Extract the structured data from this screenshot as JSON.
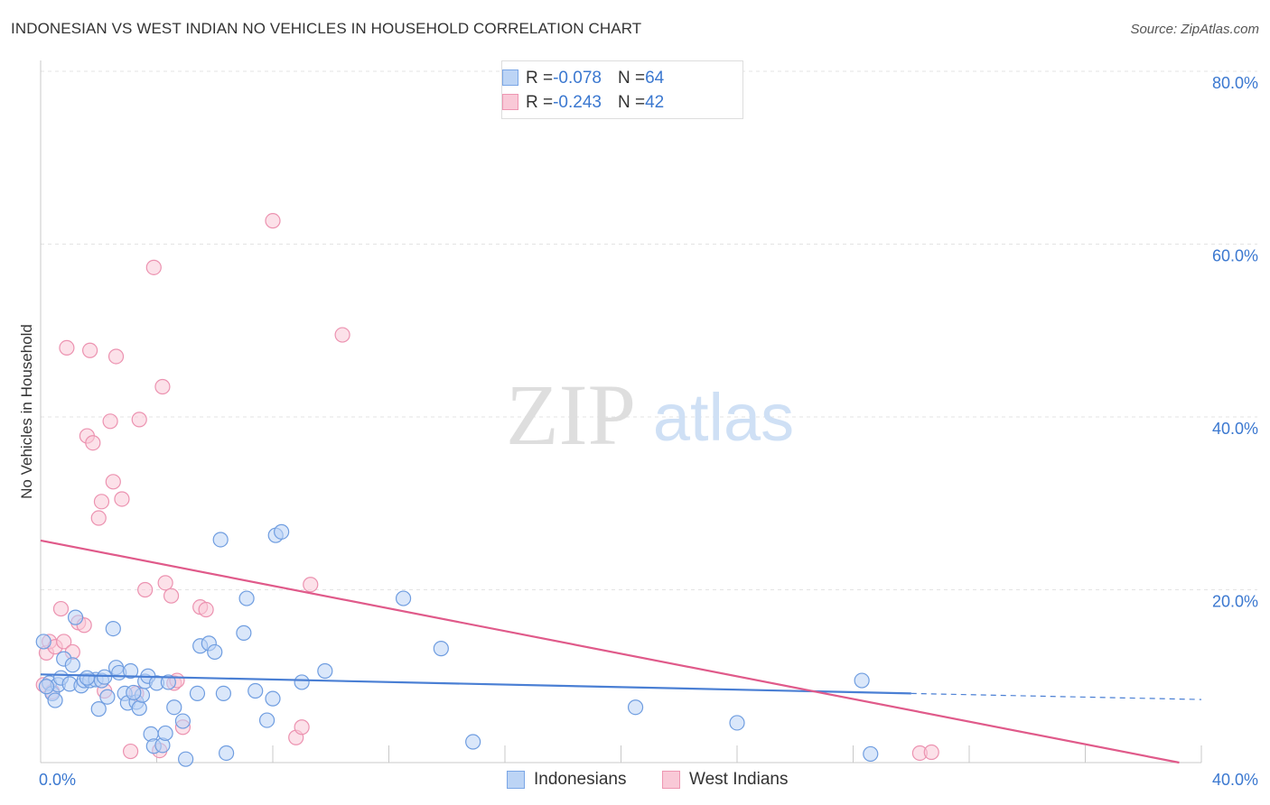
{
  "header": {
    "title": "INDONESIAN VS WEST INDIAN NO VEHICLES IN HOUSEHOLD CORRELATION CHART",
    "source": "Source: ZipAtlas.com"
  },
  "watermark": {
    "zip": "ZIP",
    "atlas": "atlas"
  },
  "legend": {
    "r_label": "R = ",
    "n_label": "N = ",
    "rows": [
      {
        "r": "-0.078",
        "n": "64",
        "fill": "#bcd4f5",
        "stroke": "#7aa6e6"
      },
      {
        "r": "-0.243",
        "n": "42",
        "fill": "#f9c9d7",
        "stroke": "#ee96b2"
      }
    ]
  },
  "bottom_legend": [
    {
      "label": "Indonesians",
      "fill": "#bcd4f5",
      "stroke": "#7aa6e6"
    },
    {
      "label": "West Indians",
      "fill": "#f9c9d7",
      "stroke": "#ee96b2"
    }
  ],
  "chart_data": {
    "type": "scatter",
    "title": "INDONESIAN VS WEST INDIAN NO VEHICLES IN HOUSEHOLD CORRELATION CHART",
    "xlabel": "",
    "ylabel": "No Vehicles in Household",
    "xlim": [
      0,
      40
    ],
    "ylim": [
      0,
      80
    ],
    "x_tick_labels": [
      {
        "value": 0,
        "label": "0.0%"
      },
      {
        "value": 40,
        "label": "40.0%"
      }
    ],
    "y_tick_labels": [
      {
        "value": 20,
        "label": "20.0%"
      },
      {
        "value": 40,
        "label": "40.0%"
      },
      {
        "value": 60,
        "label": "60.0%"
      },
      {
        "value": 80,
        "label": "80.0%"
      }
    ],
    "grid": true,
    "legend_position": "top-center",
    "series": [
      {
        "name": "Indonesians",
        "color": "#4a7fd4",
        "fill": "#bcd4f5",
        "R": -0.078,
        "N": 64,
        "trend": {
          "x0": 0,
          "y0": 10.2,
          "x1": 30,
          "y1": 8.0,
          "dashed_to_x": 40,
          "dashed_to_y": 7.3
        },
        "points": [
          [
            0.1,
            14.0
          ],
          [
            0.3,
            9.2
          ],
          [
            0.4,
            8.0
          ],
          [
            0.5,
            7.2
          ],
          [
            0.6,
            9.0
          ],
          [
            0.8,
            12.0
          ],
          [
            0.7,
            9.8
          ],
          [
            1.0,
            9.1
          ],
          [
            1.1,
            11.3
          ],
          [
            1.2,
            16.8
          ],
          [
            1.4,
            8.9
          ],
          [
            1.5,
            9.5
          ],
          [
            1.7,
            9.5
          ],
          [
            1.9,
            9.6
          ],
          [
            2.0,
            6.2
          ],
          [
            2.1,
            9.5
          ],
          [
            2.3,
            7.6
          ],
          [
            2.5,
            15.5
          ],
          [
            2.6,
            11.0
          ],
          [
            2.7,
            10.4
          ],
          [
            2.9,
            8.0
          ],
          [
            3.0,
            6.9
          ],
          [
            3.1,
            10.6
          ],
          [
            3.3,
            7.0
          ],
          [
            3.4,
            6.3
          ],
          [
            3.5,
            7.8
          ],
          [
            3.6,
            9.4
          ],
          [
            3.7,
            10.0
          ],
          [
            3.8,
            3.3
          ],
          [
            3.9,
            1.9
          ],
          [
            4.0,
            9.2
          ],
          [
            4.2,
            2.0
          ],
          [
            4.3,
            3.4
          ],
          [
            4.4,
            9.3
          ],
          [
            4.6,
            6.4
          ],
          [
            4.9,
            4.8
          ],
          [
            5.0,
            0.4
          ],
          [
            5.4,
            8.0
          ],
          [
            6.2,
            25.8
          ],
          [
            6.3,
            8.0
          ],
          [
            6.4,
            1.1
          ],
          [
            7.0,
            15.0
          ],
          [
            7.4,
            8.3
          ],
          [
            7.8,
            4.9
          ],
          [
            8.0,
            7.4
          ],
          [
            8.1,
            26.3
          ],
          [
            8.3,
            26.7
          ],
          [
            9.0,
            9.3
          ],
          [
            9.8,
            10.6
          ],
          [
            12.5,
            19.0
          ],
          [
            13.8,
            13.2
          ],
          [
            14.9,
            2.4
          ],
          [
            7.1,
            19.0
          ],
          [
            5.5,
            13.5
          ],
          [
            5.8,
            13.8
          ],
          [
            6.0,
            12.8
          ],
          [
            20.5,
            6.4
          ],
          [
            24.0,
            4.6
          ],
          [
            28.3,
            9.5
          ],
          [
            28.6,
            1.0
          ],
          [
            0.2,
            8.8
          ],
          [
            1.6,
            9.8
          ],
          [
            2.2,
            9.9
          ],
          [
            3.2,
            8.1
          ]
        ]
      },
      {
        "name": "West Indians",
        "color": "#e05a8a",
        "fill": "#f9c9d7",
        "R": -0.243,
        "N": 42,
        "trend": {
          "x0": 0,
          "y0": 25.7,
          "x1": 40,
          "y1": -0.5
        },
        "points": [
          [
            0.2,
            12.7
          ],
          [
            0.3,
            14.0
          ],
          [
            0.5,
            13.4
          ],
          [
            0.7,
            17.8
          ],
          [
            0.8,
            14.0
          ],
          [
            0.9,
            48.0
          ],
          [
            1.1,
            12.8
          ],
          [
            1.3,
            16.2
          ],
          [
            1.5,
            15.9
          ],
          [
            1.6,
            37.8
          ],
          [
            1.7,
            47.7
          ],
          [
            1.8,
            37.0
          ],
          [
            2.0,
            28.3
          ],
          [
            2.1,
            30.2
          ],
          [
            2.2,
            8.3
          ],
          [
            2.4,
            39.5
          ],
          [
            2.5,
            32.5
          ],
          [
            2.6,
            47.0
          ],
          [
            2.8,
            30.5
          ],
          [
            3.1,
            1.3
          ],
          [
            3.3,
            8.0
          ],
          [
            3.4,
            39.7
          ],
          [
            3.6,
            20.0
          ],
          [
            3.9,
            57.3
          ],
          [
            4.1,
            1.4
          ],
          [
            4.2,
            43.5
          ],
          [
            4.3,
            20.8
          ],
          [
            4.5,
            19.3
          ],
          [
            4.6,
            9.2
          ],
          [
            4.7,
            9.5
          ],
          [
            4.9,
            4.1
          ],
          [
            5.5,
            18.0
          ],
          [
            5.7,
            17.7
          ],
          [
            8.0,
            62.7
          ],
          [
            8.8,
            2.9
          ],
          [
            9.0,
            4.1
          ],
          [
            9.3,
            20.6
          ],
          [
            10.4,
            49.5
          ],
          [
            0.1,
            9.0
          ],
          [
            0.4,
            8.2
          ],
          [
            30.3,
            1.1
          ],
          [
            30.7,
            1.2
          ]
        ]
      }
    ]
  }
}
